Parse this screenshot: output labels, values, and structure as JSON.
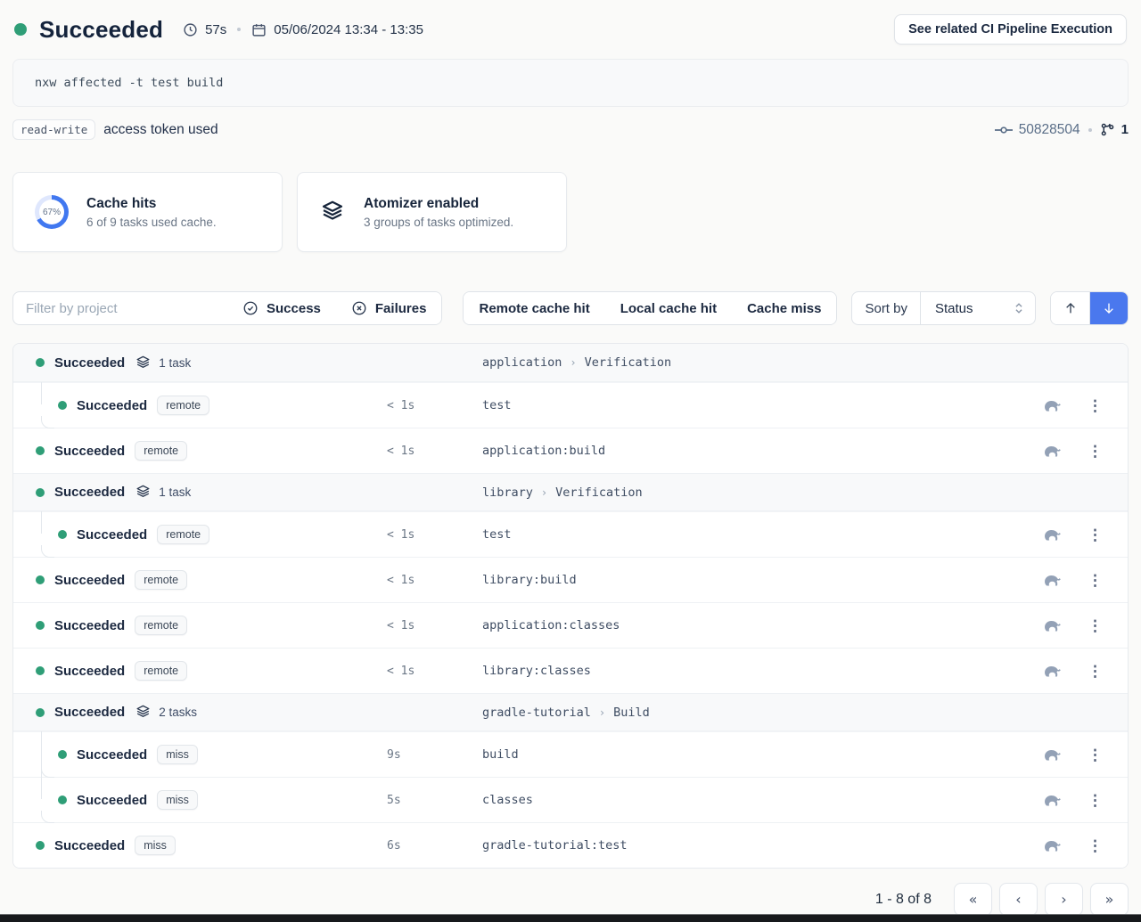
{
  "header": {
    "status": "Succeeded",
    "duration": "57s",
    "date_range": "05/06/2024 13:34 - 13:35",
    "cta_label": "See related CI Pipeline Execution"
  },
  "command": "nxw affected -t test build",
  "token": {
    "badge": "read-write",
    "text": "access token used",
    "commit_id": "50828504",
    "branch_count": "1"
  },
  "cards": {
    "cache": {
      "title": "Cache hits",
      "subtitle": "6 of 9 tasks used cache.",
      "percent": "67%"
    },
    "atomizer": {
      "title": "Atomizer enabled",
      "subtitle": "3 groups of tasks optimized."
    }
  },
  "filters": {
    "search_placeholder": "Filter by project",
    "success_label": "Success",
    "failures_label": "Failures",
    "remote_label": "Remote cache hit",
    "local_label": "Local cache hit",
    "miss_label": "Cache miss",
    "sort_label": "Sort by",
    "sort_value": "Status"
  },
  "list": {
    "path_separator": "›"
  },
  "rows": [
    {
      "type": "group",
      "status": "Succeeded",
      "count": "1 task",
      "project": "application",
      "target": "Verification"
    },
    {
      "type": "task",
      "status": "Succeeded",
      "cache": "remote",
      "time": "< 1s",
      "name": "test",
      "child": true
    },
    {
      "type": "task",
      "status": "Succeeded",
      "cache": "remote",
      "time": "< 1s",
      "name": "application:build",
      "child": false
    },
    {
      "type": "group",
      "status": "Succeeded",
      "count": "1 task",
      "project": "library",
      "target": "Verification"
    },
    {
      "type": "task",
      "status": "Succeeded",
      "cache": "remote",
      "time": "< 1s",
      "name": "test",
      "child": true
    },
    {
      "type": "task",
      "status": "Succeeded",
      "cache": "remote",
      "time": "< 1s",
      "name": "library:build",
      "child": false
    },
    {
      "type": "task",
      "status": "Succeeded",
      "cache": "remote",
      "time": "< 1s",
      "name": "application:classes",
      "child": false
    },
    {
      "type": "task",
      "status": "Succeeded",
      "cache": "remote",
      "time": "< 1s",
      "name": "library:classes",
      "child": false
    },
    {
      "type": "group",
      "status": "Succeeded",
      "count": "2 tasks",
      "project": "gradle-tutorial",
      "target": "Build"
    },
    {
      "type": "task",
      "status": "Succeeded",
      "cache": "miss",
      "time": "9s",
      "name": "build",
      "child": true
    },
    {
      "type": "task",
      "status": "Succeeded",
      "cache": "miss",
      "time": "5s",
      "name": "classes",
      "child": true
    },
    {
      "type": "task",
      "status": "Succeeded",
      "cache": "miss",
      "time": "6s",
      "name": "gradle-tutorial:test",
      "child": false
    }
  ],
  "pagination": {
    "label": "1 - 8 of 8",
    "first_icon": "«",
    "prev_icon": "‹",
    "next_icon": "›",
    "last_icon": "»"
  },
  "colors": {
    "success_green": "#2f9e77",
    "accent_blue": "#4a78ee",
    "donut_blue": "#4178f0"
  }
}
